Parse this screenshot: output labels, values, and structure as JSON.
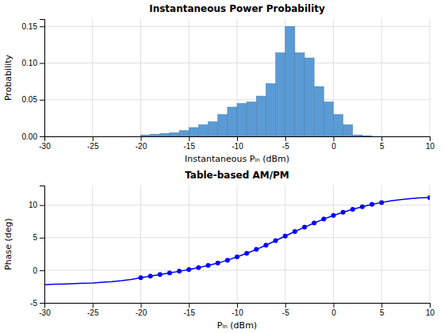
{
  "chart_data": [
    {
      "type": "histogram",
      "title": "Instantaneous Power Probability",
      "xlabel": "Instantaneous Pᵢₙ (dBm)",
      "ylabel": "Probability",
      "xlim": [
        -30,
        10
      ],
      "ylim": [
        0,
        0.16
      ],
      "xticks": [
        -30,
        -25,
        -20,
        -15,
        -10,
        -5,
        0,
        5,
        10
      ],
      "yticks": [
        {
          "value": 0,
          "label": "0.00"
        },
        0.05,
        {
          "value": 0.1,
          "label": "0.10"
        },
        0.15
      ],
      "bins": [
        -20,
        -19,
        -18,
        -17,
        -16,
        -15,
        -14,
        -13,
        -12,
        -11,
        -10,
        -9,
        -8,
        -7,
        -6,
        -5,
        -4,
        -3,
        -2,
        -1,
        0,
        1,
        2,
        3,
        4
      ],
      "values": [
        0.002,
        0.003,
        0.004,
        0.005,
        0.008,
        0.012,
        0.016,
        0.02,
        0.03,
        0.04,
        0.045,
        0.047,
        0.055,
        0.072,
        0.114,
        0.15,
        0.114,
        0.107,
        0.068,
        0.047,
        0.03,
        0.016,
        0.002,
        0.001
      ],
      "color": "#5B9BD5",
      "grid": true
    },
    {
      "type": "line",
      "title": "Table-based AM/PM",
      "xlabel": "Pᵢₙ (dBm)",
      "ylabel": "Phase (deg)",
      "xlim": [
        -30,
        10
      ],
      "ylim": [
        -5,
        13
      ],
      "xticks": [
        -30,
        -25,
        -20,
        -15,
        -10,
        -5,
        0,
        5,
        10
      ],
      "yticks": [
        -5,
        0,
        5,
        10
      ],
      "grid": true,
      "series": [
        {
          "type": "line",
          "color": "#0000FF",
          "line_style": "solid",
          "x": [
            -30,
            -29,
            -28,
            -27,
            -26,
            -25,
            -24,
            -23,
            -22,
            -21,
            -20,
            -19,
            -18,
            -17,
            -16,
            -15,
            -14,
            -13,
            -12,
            -11,
            -10,
            -9,
            -8,
            -7,
            -6,
            -5,
            -4,
            -3,
            -2,
            -1,
            0,
            1,
            2,
            3,
            4,
            5,
            6,
            7,
            8,
            9,
            10
          ],
          "values": [
            -2.2,
            -2.15,
            -2.1,
            -2.05,
            -2.0,
            -1.95,
            -1.85,
            -1.75,
            -1.6,
            -1.4,
            -1.15,
            -0.9,
            -0.65,
            -0.4,
            -0.15,
            0.1,
            0.4,
            0.75,
            1.1,
            1.55,
            2.05,
            2.6,
            3.2,
            3.85,
            4.55,
            5.25,
            5.95,
            6.6,
            7.25,
            7.85,
            8.4,
            8.9,
            9.35,
            9.75,
            10.1,
            10.4,
            10.65,
            10.85,
            11.0,
            11.1,
            11.15
          ]
        },
        {
          "type": "scatter",
          "color": "#0000FF",
          "marker": "circle",
          "x": [
            -20,
            -19,
            -18,
            -17,
            -16,
            -15,
            -14,
            -13,
            -12,
            -11,
            -10,
            -9,
            -8,
            -7,
            -6,
            -5,
            -4,
            -3,
            -2,
            -1,
            0,
            1,
            2,
            3,
            4,
            5,
            10
          ],
          "values": [
            -1.15,
            -0.9,
            -0.65,
            -0.4,
            -0.15,
            0.1,
            0.4,
            0.75,
            1.1,
            1.55,
            2.05,
            2.6,
            3.2,
            3.85,
            4.55,
            5.25,
            5.95,
            6.6,
            7.25,
            7.85,
            8.4,
            8.9,
            9.35,
            9.75,
            10.1,
            10.4,
            11.15
          ]
        }
      ]
    }
  ]
}
